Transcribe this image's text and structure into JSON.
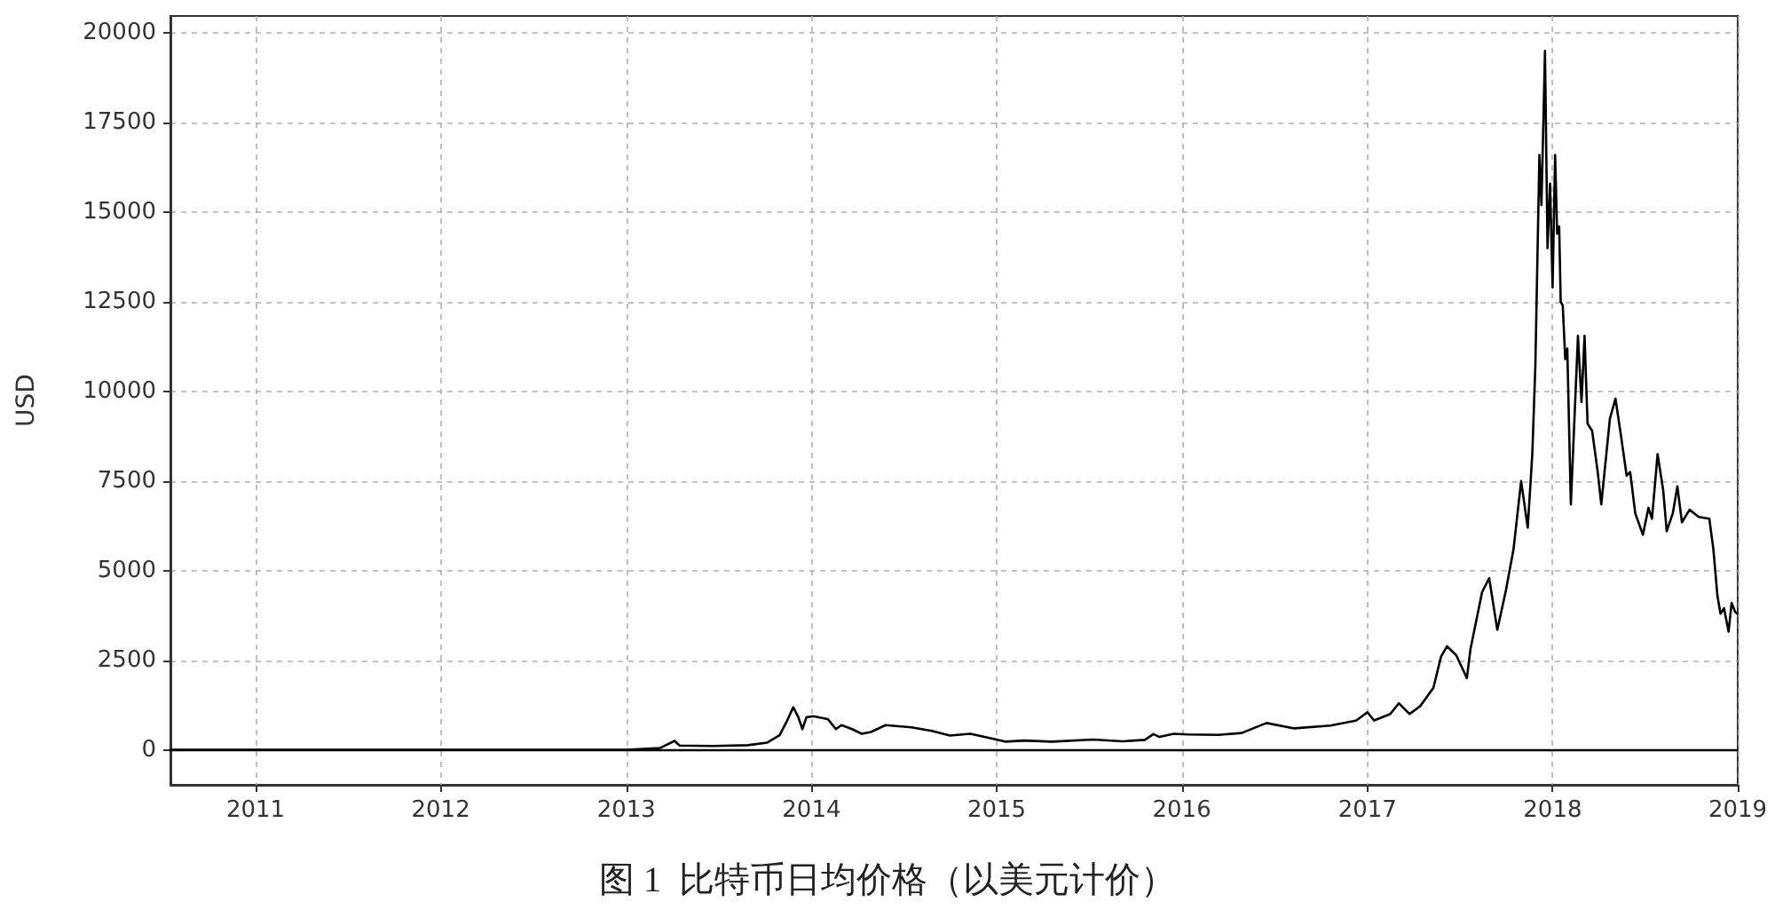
{
  "chart_data": {
    "type": "line",
    "title": "图 1  比特币日均价格（以美元计价）",
    "ylabel": "USD",
    "x": [
      "2010-07-17",
      "2011-06-08",
      "2012-01-01",
      "2012-08-15",
      "2013-01-01",
      "2013-03-08",
      "2013-04-06",
      "2013-04-16",
      "2013-06-20",
      "2013-08-28",
      "2013-10-05",
      "2013-10-30",
      "2013-11-14",
      "2013-11-26",
      "2013-12-06",
      "2013-12-14",
      "2013-12-22",
      "2014-01-05",
      "2014-02-02",
      "2014-02-18",
      "2014-03-01",
      "2014-03-22",
      "2014-04-10",
      "2014-04-28",
      "2014-05-27",
      "2014-07-17",
      "2014-08-26",
      "2014-10-01",
      "2014-11-10",
      "2014-12-02",
      "2015-01-18",
      "2015-02-24",
      "2015-04-20",
      "2015-07-10",
      "2015-09-06",
      "2015-10-20",
      "2015-11-06",
      "2015-11-18",
      "2015-12-16",
      "2016-01-12",
      "2016-03-13",
      "2016-04-28",
      "2016-06-16",
      "2016-08-10",
      "2016-10-20",
      "2016-12-10",
      "2017-01-01",
      "2017-01-14",
      "2017-02-15",
      "2017-03-04",
      "2017-03-25",
      "2017-04-15",
      "2017-05-11",
      "2017-05-26",
      "2017-06-07",
      "2017-06-25",
      "2017-07-16",
      "2017-07-23",
      "2017-08-15",
      "2017-08-29",
      "2017-09-14",
      "2017-10-01",
      "2017-10-16",
      "2017-10-31",
      "2017-11-13",
      "2017-11-22",
      "2017-11-28",
      "2017-12-06",
      "2017-12-10",
      "2017-12-13",
      "2017-12-17",
      "2017-12-22",
      "2017-12-27",
      "2018-01-01",
      "2018-01-06",
      "2018-01-10",
      "2018-01-14",
      "2018-01-17",
      "2018-01-21",
      "2018-01-26",
      "2018-01-30",
      "2018-02-03",
      "2018-02-06",
      "2018-02-20",
      "2018-02-27",
      "2018-03-05",
      "2018-03-11",
      "2018-03-20",
      "2018-03-31",
      "2018-04-07",
      "2018-04-24",
      "2018-05-05",
      "2018-05-16",
      "2018-05-27",
      "2018-06-03",
      "2018-06-13",
      "2018-06-28",
      "2018-07-09",
      "2018-07-16",
      "2018-07-27",
      "2018-08-07",
      "2018-08-14",
      "2018-08-26",
      "2018-09-04",
      "2018-09-13",
      "2018-09-28",
      "2018-10-16",
      "2018-11-06",
      "2018-11-14",
      "2018-11-22",
      "2018-11-28",
      "2018-12-05",
      "2018-12-14",
      "2018-12-20",
      "2018-12-27",
      "2018-12-31"
    ],
    "series": [
      {
        "color": "#000000",
        "values": [
          0,
          0,
          0,
          0,
          0,
          50,
          250,
          120,
          110,
          130,
          200,
          410,
          820,
          1190,
          910,
          580,
          910,
          940,
          860,
          580,
          690,
          580,
          450,
          500,
          690,
          630,
          530,
          400,
          450,
          380,
          230,
          260,
          230,
          290,
          240,
          280,
          440,
          360,
          450,
          430,
          420,
          470,
          750,
          600,
          680,
          820,
          1050,
          820,
          1000,
          1300,
          1000,
          1220,
          1730,
          2600,
          2890,
          2640,
          2000,
          2800,
          4400,
          4790,
          3350,
          4450,
          5600,
          7500,
          6200,
          8250,
          10700,
          16600,
          15200,
          17000,
          19500,
          14000,
          15800,
          12900,
          16600,
          14400,
          14600,
          12500,
          12400,
          10900,
          11200,
          8700,
          6850,
          11550,
          9700,
          11550,
          9100,
          8900,
          7750,
          6850,
          9240,
          9800,
          8750,
          7650,
          7750,
          6600,
          6000,
          6750,
          6450,
          8250,
          7250,
          6100,
          6600,
          7350,
          6350,
          6700,
          6500,
          6450,
          5600,
          4300,
          3800,
          3950,
          3300,
          4100,
          3850,
          3800
        ]
      }
    ],
    "xlim": [
      "2010-07-17",
      "2019-01-01"
    ],
    "xticks": [
      "2011",
      "2012",
      "2013",
      "2014",
      "2015",
      "2016",
      "2017",
      "2018",
      "2019"
    ],
    "ylim": [
      -975,
      20475
    ],
    "yticks": [
      0,
      2500,
      5000,
      7500,
      10000,
      12500,
      15000,
      17500,
      20000
    ],
    "ref_lines": [
      {
        "axis": "y",
        "value": 0,
        "color": "#000000"
      }
    ],
    "grid": true,
    "marker": "none",
    "line_style": "solid"
  }
}
